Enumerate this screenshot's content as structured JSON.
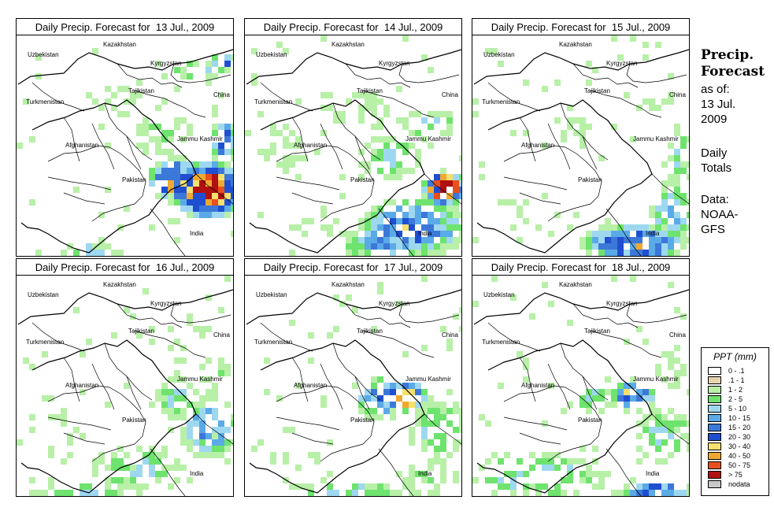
{
  "side_info": {
    "title_line1": "Precip.",
    "title_line2": "Forecast",
    "as_of_label": "as of:",
    "as_of_date1": "13 Jul.",
    "as_of_date2": "2009",
    "totals_line1": "Daily",
    "totals_line2": "Totals",
    "data_line1": "Data:",
    "data_line2": "NOAA-",
    "data_line3": "GFS"
  },
  "map_labels": {
    "kazakhstan": "Kazakhstan",
    "uzbekistan": "Uzbekistan",
    "kyrgyzstan": "Kyrgyzstan",
    "tajikistan": "Tajikistan",
    "turkmenistan": "Turkmenistan",
    "china": "China",
    "jammu_kashmir": "Jammu Kashmir",
    "afghanistan": "Afghanistan",
    "pakistan": "Pakistan",
    "india": "India"
  },
  "panels": [
    {
      "title": "Daily Precip. Forecast for  13 Jul., 2009",
      "day": 0
    },
    {
      "title": "Daily Precip. Forecast for  14 Jul., 2009",
      "day": 1
    },
    {
      "title": "Daily Precip. Forecast for  15 Jul., 2009",
      "day": 2
    },
    {
      "title": "Daily Precip. Forecast for  16 Jul., 2009",
      "day": 3
    },
    {
      "title": "Daily Precip. Forecast for  17 Jul., 2009",
      "day": 4
    },
    {
      "title": "Daily Precip. Forecast for  18 Jul., 2009",
      "day": 5
    }
  ],
  "legend": {
    "title": "PPT (mm)",
    "items": [
      {
        "label": "0 - .1",
        "color": "#ffffff"
      },
      {
        "label": ".1 - 1",
        "color": "#e8d3b0"
      },
      {
        "label": "1 - 2",
        "color": "#b8f0a8"
      },
      {
        "label": "2 - 5",
        "color": "#6ee36e"
      },
      {
        "label": "5 - 10",
        "color": "#9ed8f0"
      },
      {
        "label": "10 - 15",
        "color": "#5aaae8"
      },
      {
        "label": "15 - 20",
        "color": "#3c78d8"
      },
      {
        "label": "20 - 30",
        "color": "#1f4fd0"
      },
      {
        "label": "30 - 40",
        "color": "#f5e070"
      },
      {
        "label": "40 - 50",
        "color": "#f0a830"
      },
      {
        "label": "50 - 75",
        "color": "#e8501e"
      },
      {
        "label": "> 75",
        "color": "#b01010"
      },
      {
        "label": "nodata",
        "color": "#c8c8c8"
      }
    ]
  }
}
